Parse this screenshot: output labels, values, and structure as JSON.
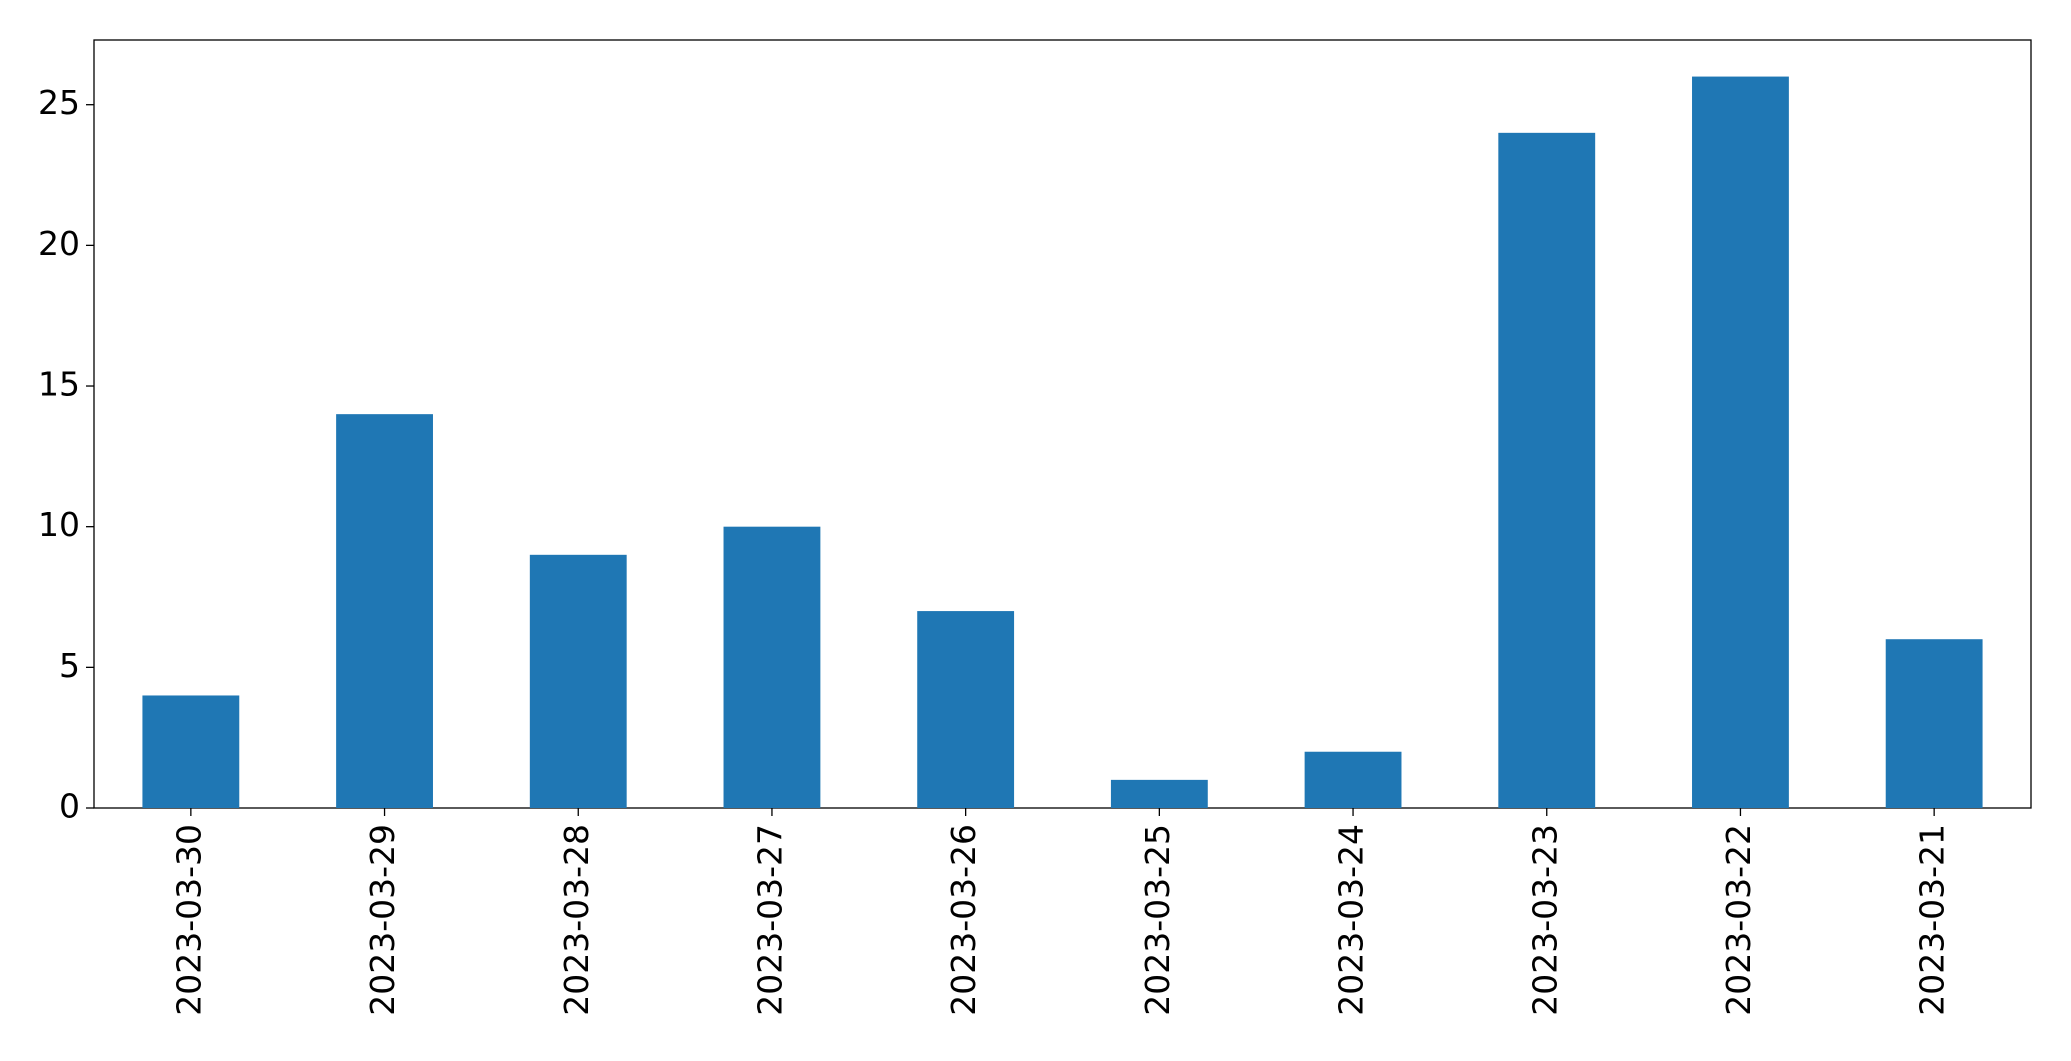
{
  "chart_data": {
    "type": "bar",
    "categories": [
      "2023-03-30",
      "2023-03-29",
      "2023-03-28",
      "2023-03-27",
      "2023-03-26",
      "2023-03-25",
      "2023-03-24",
      "2023-03-23",
      "2023-03-22",
      "2023-03-21"
    ],
    "values": [
      4,
      14,
      9,
      10,
      7,
      1,
      2,
      24,
      26,
      6
    ],
    "color": "#1f77b4",
    "ylim": [
      0,
      27.3
    ],
    "yticks": [
      0,
      5,
      10,
      15,
      20,
      25
    ],
    "grid": false
  }
}
